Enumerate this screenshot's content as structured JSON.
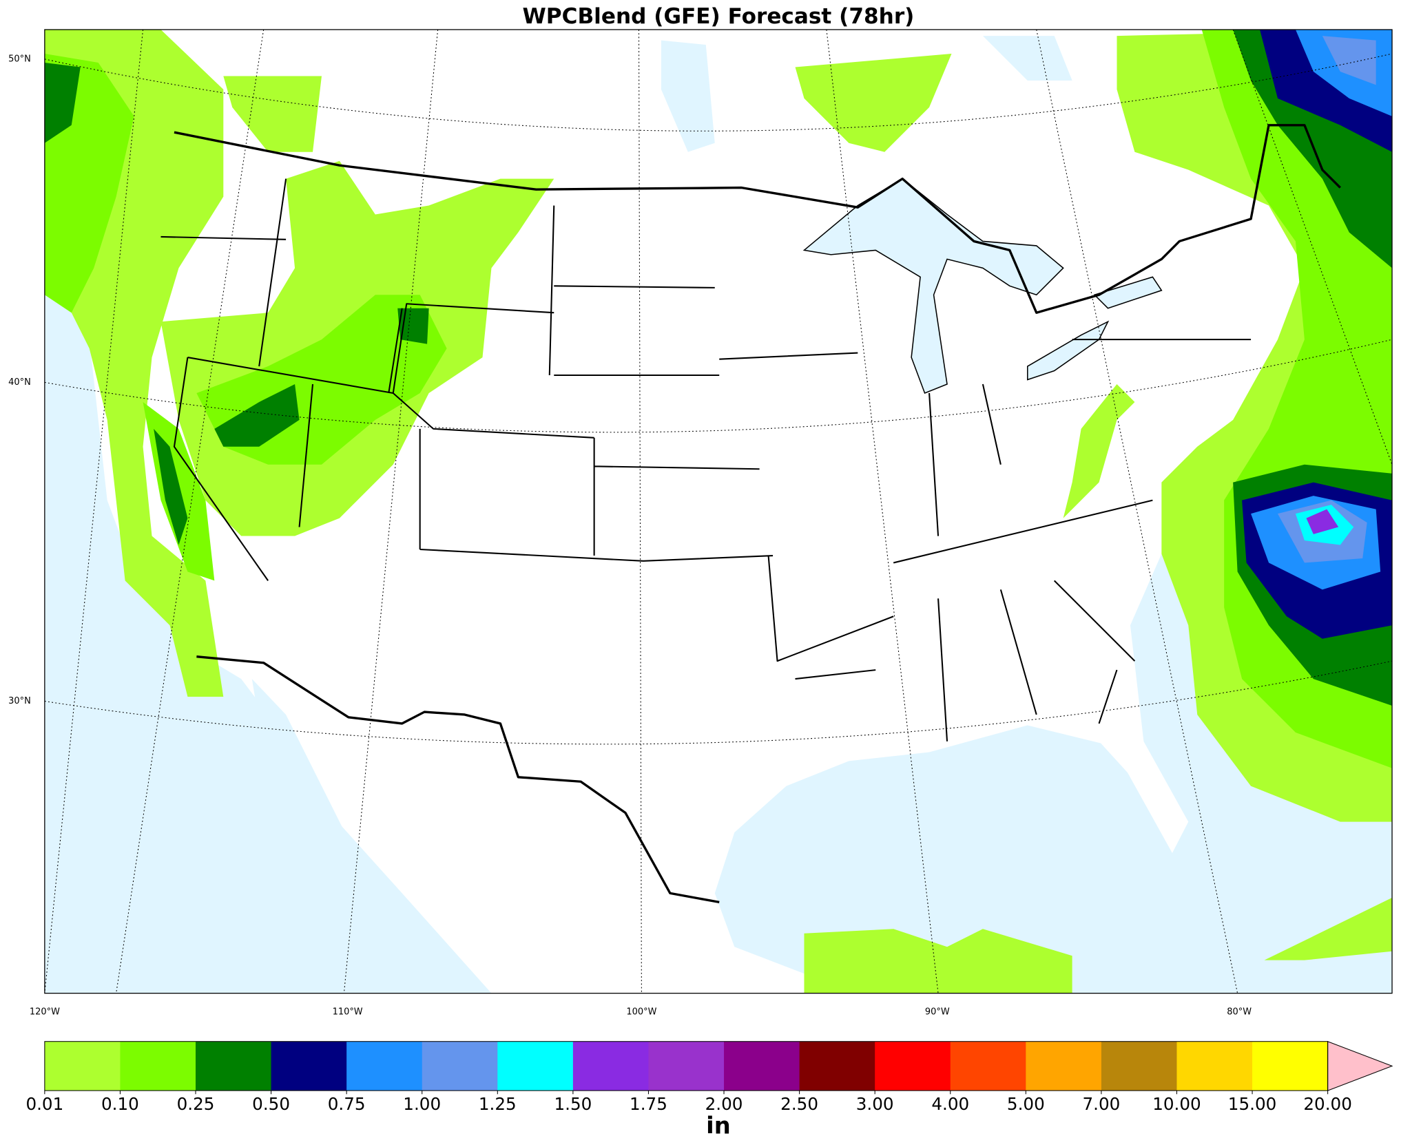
{
  "title": "WPCBlend (GFE) Forecast (78hr)",
  "map": {
    "lat_labels": [
      "50°N",
      "40°N",
      "30°N"
    ],
    "lon_labels": [
      "120°W",
      "110°W",
      "100°W",
      "90°W",
      "80°W"
    ]
  },
  "colorbar": {
    "levels": [
      "0.01",
      "0.10",
      "0.25",
      "0.50",
      "0.75",
      "1.00",
      "1.25",
      "1.50",
      "1.75",
      "2.00",
      "2.50",
      "3.00",
      "4.00",
      "5.00",
      "7.00",
      "10.00",
      "15.00",
      "20.00"
    ],
    "colors": [
      "#adff2f",
      "#7cfc00",
      "#008000",
      "#000080",
      "#1e90ff",
      "#6495ed",
      "#00ffff",
      "#8a2be2",
      "#9932cc",
      "#8b008b",
      "#800000",
      "#ff0000",
      "#ff4500",
      "#ffa500",
      "#b8860b",
      "#ffd700",
      "#ffff00"
    ],
    "extend_color": "#ffc0cb",
    "unit": "in"
  }
}
